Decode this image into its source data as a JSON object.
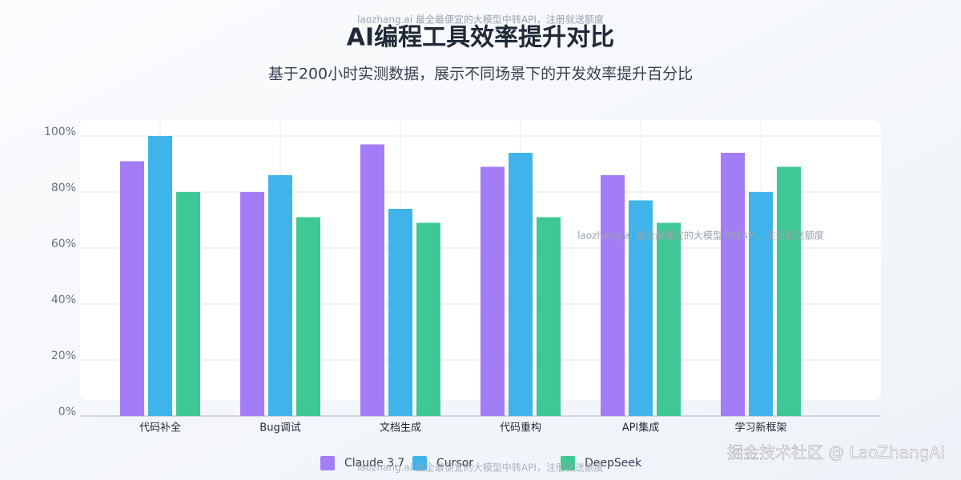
{
  "chart_data": {
    "type": "bar",
    "title": "AI编程工具效率提升对比",
    "subtitle": "基于200小时实测数据，展示不同场景下的开发效率提升百分比",
    "watermark": "laozhang.ai 最全最便宜的大模型中转API，注册就送额度",
    "credit": "掘金技术社区 @ LaoZhangAI",
    "categories": [
      "代码补全",
      "Bug调试",
      "文档生成",
      "代码重构",
      "API集成",
      "学习新框架"
    ],
    "series": [
      {
        "name": "Claude 3.7",
        "color": "#a27df6",
        "values": [
          91,
          80,
          97,
          89,
          86,
          94
        ]
      },
      {
        "name": "Cursor",
        "color": "#3fb3ea",
        "values": [
          100,
          86,
          74,
          94,
          77,
          80
        ]
      },
      {
        "name": "DeepSeek",
        "color": "#3fc795",
        "values": [
          80,
          71,
          69,
          71,
          69,
          89
        ]
      }
    ],
    "ylim": [
      0,
      100
    ],
    "yticks": [
      {
        "value": 0,
        "label": "0%"
      },
      {
        "value": 20,
        "label": "20%"
      },
      {
        "value": 40,
        "label": "40%"
      },
      {
        "value": 60,
        "label": "60%"
      },
      {
        "value": 80,
        "label": "80%"
      },
      {
        "value": 100,
        "label": "100%"
      }
    ],
    "grid": true,
    "legend": "bottom"
  }
}
